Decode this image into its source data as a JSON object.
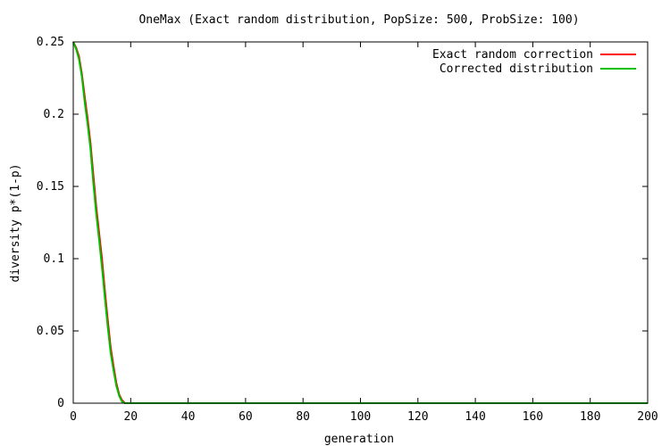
{
  "chart_data": {
    "type": "line",
    "title": "OneMax (Exact random distribution, PopSize: 500, ProbSize: 100)",
    "xlabel": "generation",
    "ylabel": "diversity p*(1-p)",
    "xlim": [
      0,
      200
    ],
    "ylim": [
      0,
      0.25
    ],
    "xticks": [
      0,
      20,
      40,
      60,
      80,
      100,
      120,
      140,
      160,
      180,
      200
    ],
    "yticks": [
      0,
      0.05,
      0.1,
      0.15,
      0.2,
      0.25
    ],
    "xtick_labels": [
      "0",
      "20",
      "40",
      "60",
      "80",
      "100",
      "120",
      "140",
      "160",
      "180",
      "200"
    ],
    "ytick_labels": [
      "0",
      "0.05",
      "0.1",
      "0.15",
      "0.2",
      "0.25"
    ],
    "grid": false,
    "legend_position": "top-right",
    "series": [
      {
        "name": "Exact random correction",
        "color": "#ff0000",
        "x": [
          0,
          1,
          2,
          3,
          4,
          5,
          6,
          7,
          8,
          9,
          10,
          11,
          12,
          13,
          14,
          15,
          16,
          17,
          18,
          19,
          20,
          200
        ],
        "y": [
          0.25,
          0.246,
          0.24,
          0.228,
          0.212,
          0.197,
          0.18,
          0.158,
          0.136,
          0.118,
          0.1,
          0.078,
          0.058,
          0.039,
          0.026,
          0.014,
          0.006,
          0.002,
          0.0,
          0.0,
          0.0,
          0.0
        ]
      },
      {
        "name": "Corrected distribution",
        "color": "#00c000",
        "x": [
          0,
          1,
          2,
          3,
          4,
          5,
          6,
          7,
          8,
          9,
          10,
          11,
          12,
          13,
          14,
          15,
          16,
          17,
          18,
          19,
          20,
          200
        ],
        "y": [
          0.25,
          0.245,
          0.238,
          0.226,
          0.208,
          0.193,
          0.176,
          0.152,
          0.131,
          0.113,
          0.094,
          0.073,
          0.053,
          0.035,
          0.023,
          0.012,
          0.005,
          0.001,
          0.0,
          0.0,
          0.0,
          0.0
        ]
      }
    ]
  }
}
